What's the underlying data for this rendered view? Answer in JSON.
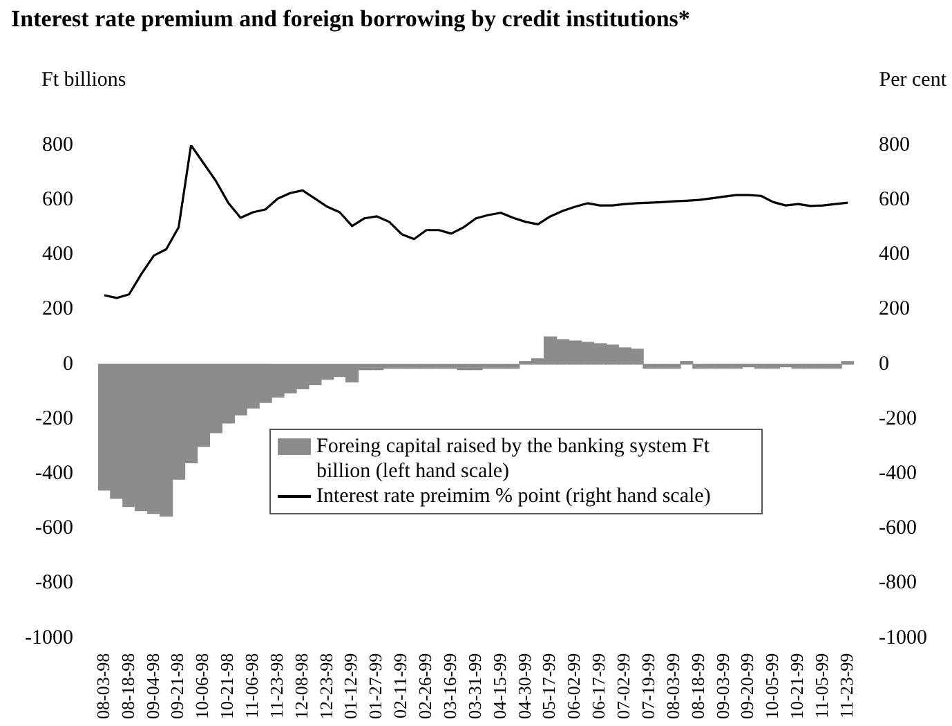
{
  "chart_data": {
    "type": "bar",
    "title": "Interest rate premium and foreign borrowing by credit institutions*",
    "ylabel": "Ft billions",
    "y2label": "Per cent",
    "categories": [
      "08-03-98",
      null,
      "08-18-98",
      null,
      "09-04-98",
      null,
      "09-21-98",
      null,
      "10-06-98",
      null,
      "10-21-98",
      null,
      "11-06-98",
      null,
      "11-23-98",
      null,
      "12-08-98",
      null,
      "12-23-98",
      null,
      "01-12-99",
      null,
      "01-27-99",
      null,
      "02-11-99",
      null,
      "02-26-99",
      null,
      "03-16-99",
      null,
      "03-31-99",
      null,
      "04-15-99",
      null,
      "04-30-99",
      null,
      "05-17-99",
      null,
      "06-02-99",
      null,
      "06-17-99",
      null,
      "07-02-99",
      null,
      "07-19-99",
      null,
      "08-03-99",
      null,
      "08-18-99",
      null,
      "09-03-99",
      null,
      "09-20-99",
      null,
      "10-05-99",
      null,
      "10-21-99",
      null,
      "11-05-99",
      null,
      "11-23-99"
    ],
    "series": [
      {
        "name": "Foreing capital raised by the banking system Ft billion (left hand scale)",
        "color": "#8c8c8c",
        "values": [
          -460,
          -490,
          -520,
          -535,
          -545,
          -555,
          -420,
          -360,
          -300,
          -250,
          -215,
          -185,
          -160,
          -140,
          -120,
          -105,
          -90,
          -75,
          -55,
          -45,
          -65,
          -20,
          -20,
          -15,
          -15,
          -15,
          -15,
          -15,
          -15,
          -20,
          -20,
          -15,
          -15,
          -15,
          10,
          20,
          100,
          90,
          85,
          80,
          75,
          70,
          60,
          55,
          -15,
          -15,
          -15,
          10,
          -15,
          -15,
          -15,
          -15,
          -10,
          -15,
          -15,
          -10,
          -15,
          -15,
          -15,
          -15,
          10
        ]
      },
      {
        "name": "Interest rate preimim % point (right hand scale)",
        "type": "line",
        "axis": "y2",
        "color": "#000000",
        "values": [
          252,
          242,
          255,
          330,
          397,
          420,
          500,
          800,
          735,
          670,
          590,
          535,
          555,
          565,
          605,
          625,
          635,
          605,
          575,
          555,
          505,
          533,
          540,
          520,
          475,
          457,
          490,
          490,
          477,
          500,
          533,
          545,
          553,
          535,
          520,
          511,
          540,
          560,
          575,
          588,
          580,
          580,
          585,
          588,
          590,
          592,
          595,
          597,
          600,
          606,
          612,
          618,
          618,
          615,
          592,
          580,
          585,
          578,
          580,
          585,
          590
        ]
      }
    ],
    "ylim": [
      -1000,
      800
    ],
    "yticks": [
      800,
      600,
      400,
      200,
      0,
      -200,
      -400,
      -600,
      -800,
      -1000
    ],
    "y2lim": [
      -1000,
      800
    ],
    "y2ticks": [
      800,
      600,
      400,
      200,
      0,
      -200,
      -400,
      -600,
      -800,
      -1000
    ],
    "grid": false,
    "legend": "bottom",
    "line_style": "solid",
    "marker": "none"
  }
}
